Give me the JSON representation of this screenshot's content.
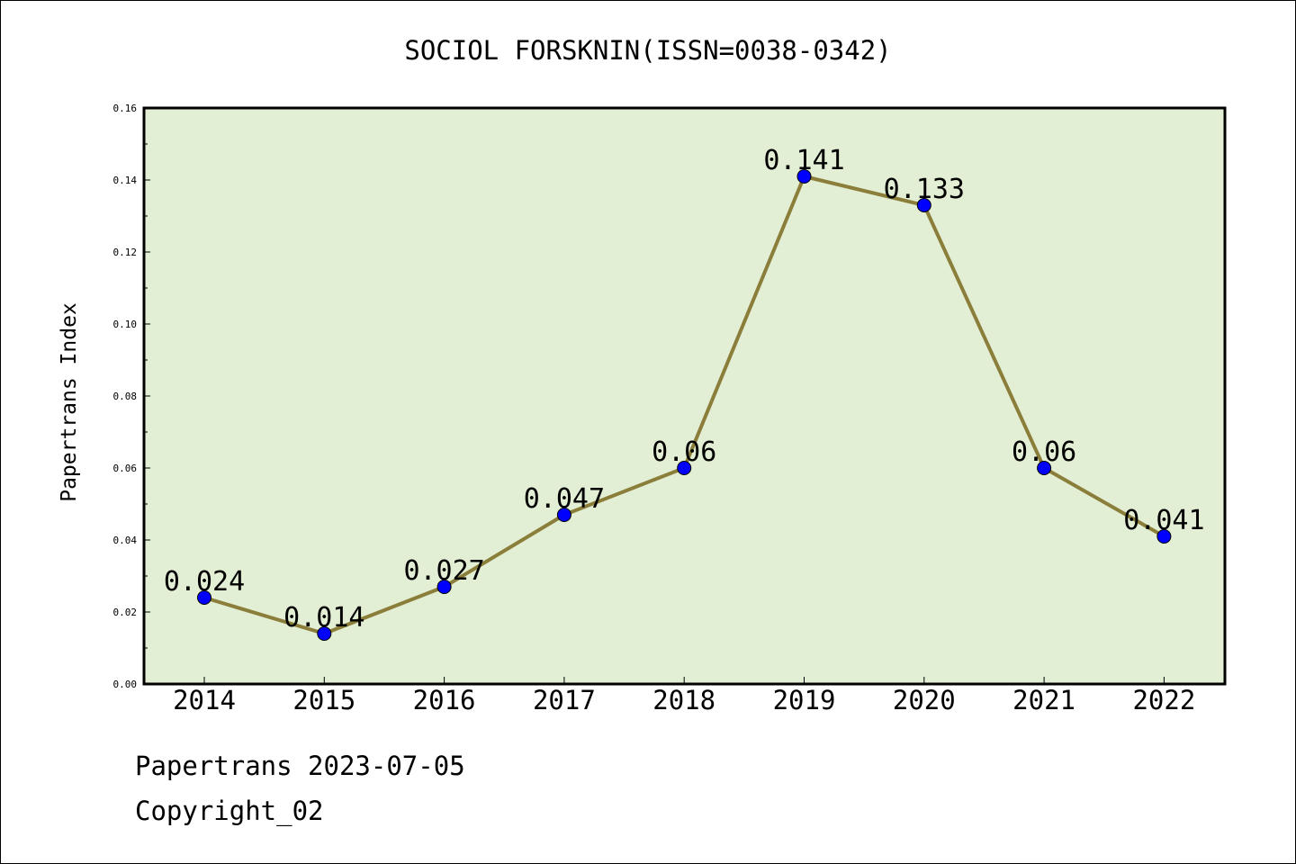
{
  "chart_data": {
    "type": "line",
    "title": "SOCIOL FORSKNIN(ISSN=0038-0342)",
    "xlabel": "",
    "ylabel": "Papertrans Index",
    "categories": [
      "2014",
      "2015",
      "2016",
      "2017",
      "2018",
      "2019",
      "2020",
      "2021",
      "2022"
    ],
    "values": [
      0.024,
      0.014,
      0.027,
      0.047,
      0.06,
      0.141,
      0.133,
      0.06,
      0.041
    ],
    "data_labels": [
      "0.024",
      "0.014",
      "0.027",
      "0.047",
      "0.06",
      "0.141",
      "0.133",
      "0.06",
      "0.041"
    ],
    "yticks": [
      "0.00",
      "0.02",
      "0.04",
      "0.06",
      "0.08",
      "0.10",
      "0.12",
      "0.14",
      "0.16"
    ],
    "ylim": [
      0,
      0.16
    ],
    "grid": false,
    "colors": {
      "plot_background": "#e2efd4",
      "line": "#8b7d3a",
      "marker": "#0000ff"
    }
  },
  "footer": {
    "line1": "Papertrans 2023-07-05",
    "line2": "Copyright_02"
  }
}
